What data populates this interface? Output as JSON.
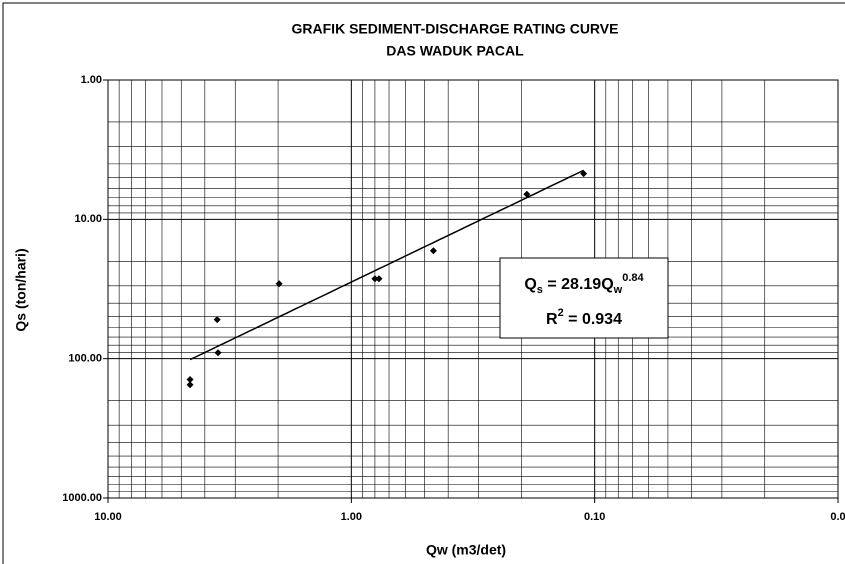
{
  "chart_data": {
    "type": "scatter",
    "title": "GRAFIK SEDIMENT-DISCHARGE RATING CURVE",
    "subtitle": "DAS WADUK PACAL",
    "x_label": "Qw (m3/det)",
    "y_label": "Qs (ton/hari)",
    "xscale": "log",
    "yscale": "log",
    "xlim": [
      10,
      0.01
    ],
    "ylim": [
      1000,
      1
    ],
    "xticks": [
      {
        "value": 10,
        "label": "10.00"
      },
      {
        "value": 1,
        "label": "1.00"
      },
      {
        "value": 0.1,
        "label": "0.10"
      },
      {
        "value": 0.01,
        "label": "0.0"
      }
    ],
    "yticks": [
      {
        "value": 1,
        "label": "1.00"
      },
      {
        "value": 10,
        "label": "10.00"
      },
      {
        "value": 100,
        "label": "100.00"
      },
      {
        "value": 1000,
        "label": "1000.00"
      }
    ],
    "grid": true,
    "color": "#000000",
    "x": [
      4.6,
      4.6,
      3.56,
      3.53,
      1.98,
      0.8,
      0.77,
      0.46,
      0.19,
      0.111
    ],
    "values": [
      141,
      154,
      52.5,
      90.6,
      29,
      26.7,
      26.7,
      16.8,
      6.6,
      4.7
    ],
    "trendline": {
      "equation": [
        "Q",
        "s",
        " = ",
        28.19,
        "Q",
        "w",
        0.84
      ],
      "r2": [
        "R",
        "2",
        " = ",
        0.934
      ]
    }
  }
}
